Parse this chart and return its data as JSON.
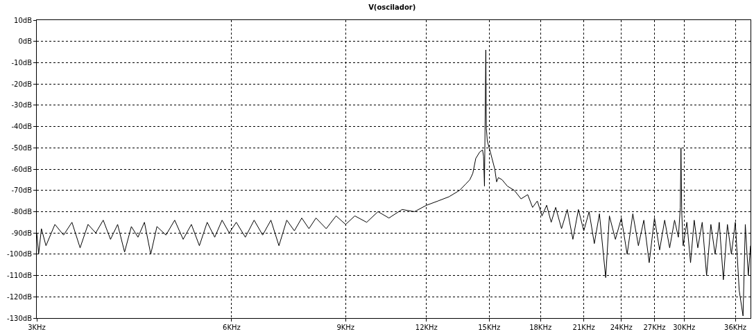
{
  "chart_data": {
    "type": "line",
    "title": "V(oscilador)",
    "log": "x",
    "grid": true,
    "line_style": "solid",
    "marker": "none",
    "xlim": [
      3,
      38
    ],
    "xticks": [
      {
        "value": 3,
        "label": "3KHz"
      },
      {
        "value": 6,
        "label": "6KHz"
      },
      {
        "value": 9,
        "label": "9KHz"
      },
      {
        "value": 12,
        "label": "12KHz"
      },
      {
        "value": 15,
        "label": "15KHz"
      },
      {
        "value": 18,
        "label": "18KHz"
      },
      {
        "value": 21,
        "label": "21KHz"
      },
      {
        "value": 24,
        "label": "24KHz"
      },
      {
        "value": 27,
        "label": "27KHz"
      },
      {
        "value": 30,
        "label": "30KHz"
      },
      {
        "value": 36,
        "label": "36KHz"
      }
    ],
    "ylim": [
      -130,
      10
    ],
    "yticks": [
      {
        "value": 10,
        "label": "10dB"
      },
      {
        "value": 0,
        "label": "0dB"
      },
      {
        "value": -10,
        "label": "-10dB"
      },
      {
        "value": -20,
        "label": "-20dB"
      },
      {
        "value": -30,
        "label": "-30dB"
      },
      {
        "value": -40,
        "label": "-40dB"
      },
      {
        "value": -50,
        "label": "-50dB"
      },
      {
        "value": -60,
        "label": "-60dB"
      },
      {
        "value": -70,
        "label": "-70dB"
      },
      {
        "value": -80,
        "label": "-80dB"
      },
      {
        "value": -90,
        "label": "-90dB"
      },
      {
        "value": -100,
        "label": "-100dB"
      },
      {
        "value": -110,
        "label": "-110dB"
      },
      {
        "value": -120,
        "label": "-120dB"
      },
      {
        "value": -130,
        "label": "-130dB"
      }
    ],
    "x": [
      3.0,
      3.02,
      3.05,
      3.1,
      3.2,
      3.3,
      3.4,
      3.5,
      3.6,
      3.7,
      3.8,
      3.9,
      4.0,
      4.1,
      4.2,
      4.3,
      4.4,
      4.5,
      4.6,
      4.75,
      4.9,
      5.05,
      5.2,
      5.35,
      5.5,
      5.65,
      5.8,
      5.95,
      6.1,
      6.3,
      6.5,
      6.7,
      6.9,
      7.1,
      7.3,
      7.5,
      7.7,
      7.9,
      8.1,
      8.4,
      8.7,
      9.0,
      9.3,
      9.7,
      10.1,
      10.5,
      11.0,
      11.5,
      12.0,
      12.5,
      13.0,
      13.5,
      13.8,
      14.0,
      14.15,
      14.3,
      14.5,
      14.65,
      14.7,
      14.75,
      14.82,
      14.85,
      14.9,
      15.0,
      15.15,
      15.3,
      15.4,
      15.5,
      15.7,
      16.0,
      16.4,
      16.8,
      17.2,
      17.5,
      17.8,
      18.1,
      18.4,
      18.7,
      19.0,
      19.4,
      19.8,
      20.2,
      20.6,
      21.0,
      21.4,
      21.8,
      22.2,
      22.7,
      23.0,
      23.5,
      24.0,
      24.5,
      25.0,
      25.5,
      26.0,
      26.5,
      27.0,
      27.5,
      28.0,
      28.5,
      29.0,
      29.4,
      29.6,
      29.67,
      29.75,
      29.9,
      30.3,
      30.7,
      31.1,
      31.5,
      32.0,
      32.5,
      33.0,
      33.5,
      34.0,
      34.5,
      35.0,
      35.5,
      36.0,
      36.5,
      37.0,
      37.3,
      37.7,
      38.0
    ],
    "series": [
      {
        "color": "#000000",
        "values": [
          -90,
          -100,
          -88,
          -96,
          -86,
          -91,
          -85,
          -97,
          -86,
          -90,
          -84,
          -93,
          -86,
          -99,
          -87,
          -92,
          -85,
          -100,
          -87,
          -91,
          -84,
          -93,
          -86,
          -96,
          -85,
          -92,
          -84,
          -90,
          -85,
          -92,
          -84,
          -91,
          -84,
          -96,
          -84,
          -89,
          -83,
          -88,
          -83,
          -88,
          -82,
          -86,
          -82,
          -85,
          -80,
          -83,
          -79,
          -80,
          -77,
          -75,
          -73,
          -70,
          -67,
          -65,
          -62,
          -55,
          -52,
          -51,
          -54,
          -68,
          -4,
          -41,
          -47,
          -50,
          -55,
          -60,
          -66,
          -64,
          -65,
          -68,
          -70,
          -74,
          -72,
          -78,
          -75,
          -82,
          -77,
          -85,
          -78,
          -88,
          -79,
          -93,
          -79,
          -89,
          -80,
          -95,
          -81,
          -111,
          -82,
          -93,
          -83,
          -100,
          -81,
          -96,
          -84,
          -104,
          -83,
          -98,
          -84,
          -97,
          -84,
          -92,
          -78,
          -50,
          -80,
          -96,
          -85,
          -104,
          -84,
          -97,
          -85,
          -110,
          -86,
          -100,
          -85,
          -112,
          -86,
          -100,
          -85,
          -117,
          -129,
          -86,
          -110,
          -96
        ]
      }
    ]
  }
}
